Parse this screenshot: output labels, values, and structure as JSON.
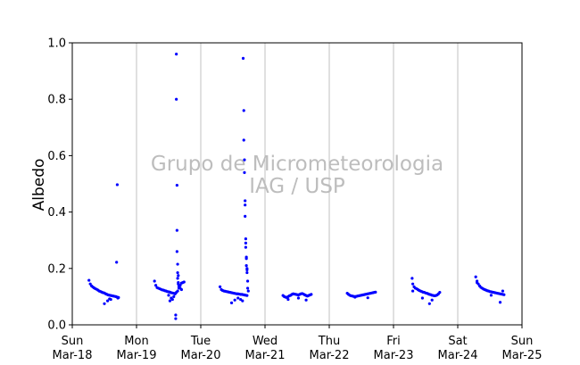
{
  "chart_data": {
    "type": "scatter",
    "ylabel": "Albedo",
    "ylim": [
      0,
      1
    ],
    "yticks": [
      "0.0",
      "0.2",
      "0.4",
      "0.6",
      "0.8",
      "1.0"
    ],
    "xlim": [
      0,
      7
    ],
    "xticks": [
      {
        "day": "Sun",
        "date": "Mar-18"
      },
      {
        "day": "Mon",
        "date": "Mar-19"
      },
      {
        "day": "Tue",
        "date": "Mar-20"
      },
      {
        "day": "Wed",
        "date": "Mar-21"
      },
      {
        "day": "Thu",
        "date": "Mar-22"
      },
      {
        "day": "Fri",
        "date": "Mar-23"
      },
      {
        "day": "Sat",
        "date": "Mar-24"
      },
      {
        "day": "Sun",
        "date": "Mar-25"
      }
    ],
    "grid": "vertical",
    "watermark": [
      "Grupo de Micrometeorologia",
      "IAG / USP"
    ],
    "marker_color": "#0000ff",
    "gridline_color": "#c0c0c0",
    "series": [
      {
        "x": [
          0.26,
          0.28,
          0.3,
          0.32,
          0.34,
          0.36,
          0.38,
          0.4,
          0.42,
          0.44,
          0.46,
          0.48,
          0.5,
          0.52,
          0.54,
          0.56,
          0.58,
          0.6,
          0.62,
          0.64,
          0.66,
          0.68,
          0.7,
          0.72,
          0.5,
          0.55,
          0.58,
          0.6,
          0.69,
          0.7,
          0.71,
          1.28,
          1.3,
          1.32,
          1.34,
          1.36,
          1.38,
          1.4,
          1.42,
          1.44,
          1.46,
          1.48,
          1.5,
          1.52,
          1.54,
          1.56,
          1.58,
          1.6,
          1.62,
          1.64,
          1.66,
          1.68,
          1.7,
          1.72,
          1.74,
          1.5,
          1.52,
          1.54,
          1.56,
          1.58,
          1.6,
          1.61,
          1.61,
          1.62,
          1.62,
          1.63,
          1.63,
          1.63,
          1.64,
          1.64,
          1.64,
          1.65,
          1.65,
          1.65,
          1.66,
          1.66,
          1.68,
          1.7,
          2.3,
          2.32,
          2.34,
          2.36,
          2.38,
          2.4,
          2.42,
          2.44,
          2.46,
          2.48,
          2.5,
          2.52,
          2.54,
          2.56,
          2.58,
          2.6,
          2.62,
          2.64,
          2.66,
          2.68,
          2.7,
          2.72,
          2.48,
          2.53,
          2.58,
          2.62,
          2.65,
          2.66,
          2.67,
          2.67,
          2.68,
          2.68,
          2.69,
          2.69,
          2.69,
          2.7,
          2.7,
          2.7,
          2.71,
          2.71,
          2.71,
          2.72,
          2.72,
          2.72,
          2.73,
          2.73,
          2.74,
          3.28,
          3.3,
          3.32,
          3.34,
          3.36,
          3.38,
          3.4,
          3.42,
          3.44,
          3.46,
          3.48,
          3.5,
          3.52,
          3.54,
          3.56,
          3.58,
          3.6,
          3.62,
          3.64,
          3.66,
          3.68,
          3.7,
          3.72,
          3.36,
          3.52,
          3.64,
          4.28,
          4.3,
          4.32,
          4.34,
          4.36,
          4.38,
          4.4,
          4.42,
          4.44,
          4.46,
          4.48,
          4.5,
          4.52,
          4.54,
          4.56,
          4.58,
          4.6,
          4.62,
          4.64,
          4.66,
          4.68,
          4.7,
          4.72,
          4.4,
          4.6,
          5.29,
          5.3,
          5.32,
          5.34,
          5.36,
          5.38,
          5.4,
          5.42,
          5.44,
          5.46,
          5.48,
          5.5,
          5.52,
          5.54,
          5.56,
          5.58,
          5.6,
          5.62,
          5.64,
          5.66,
          5.68,
          5.7,
          5.72,
          5.3,
          5.45,
          5.56,
          5.6,
          6.28,
          6.3,
          6.32,
          6.34,
          6.36,
          6.38,
          6.4,
          6.42,
          6.44,
          6.46,
          6.48,
          6.5,
          6.52,
          6.54,
          6.56,
          6.58,
          6.6,
          6.62,
          6.64,
          6.66,
          6.68,
          6.7,
          6.72,
          6.3,
          6.52,
          6.66,
          6.7
        ],
        "y": [
          0.158,
          0.145,
          0.138,
          0.134,
          0.131,
          0.128,
          0.126,
          0.123,
          0.12,
          0.118,
          0.116,
          0.114,
          0.113,
          0.11,
          0.108,
          0.106,
          0.105,
          0.104,
          0.103,
          0.102,
          0.101,
          0.1,
          0.098,
          0.097,
          0.075,
          0.085,
          0.092,
          0.09,
          0.222,
          0.497,
          0.095,
          0.155,
          0.14,
          0.132,
          0.13,
          0.128,
          0.126,
          0.124,
          0.123,
          0.121,
          0.12,
          0.118,
          0.117,
          0.116,
          0.114,
          0.113,
          0.112,
          0.11,
          0.115,
          0.12,
          0.13,
          0.14,
          0.148,
          0.15,
          0.152,
          0.105,
          0.085,
          0.095,
          0.09,
          0.1,
          0.11,
          0.022,
          0.035,
          0.96,
          0.8,
          0.495,
          0.335,
          0.26,
          0.215,
          0.185,
          0.165,
          0.175,
          0.15,
          0.145,
          0.14,
          0.135,
          0.13,
          0.125,
          0.135,
          0.125,
          0.122,
          0.12,
          0.119,
          0.118,
          0.117,
          0.116,
          0.115,
          0.114,
          0.113,
          0.112,
          0.111,
          0.11,
          0.11,
          0.109,
          0.108,
          0.108,
          0.107,
          0.106,
          0.105,
          0.104,
          0.078,
          0.088,
          0.095,
          0.09,
          0.085,
          0.945,
          0.76,
          0.655,
          0.585,
          0.54,
          0.44,
          0.425,
          0.385,
          0.305,
          0.29,
          0.275,
          0.24,
          0.235,
          0.21,
          0.2,
          0.195,
          0.185,
          0.155,
          0.13,
          0.12,
          0.104,
          0.1,
          0.098,
          0.097,
          0.1,
          0.103,
          0.105,
          0.108,
          0.11,
          0.109,
          0.108,
          0.107,
          0.106,
          0.108,
          0.11,
          0.111,
          0.109,
          0.106,
          0.104,
          0.102,
          0.104,
          0.106,
          0.108,
          0.09,
          0.095,
          0.088,
          0.112,
          0.108,
          0.105,
          0.103,
          0.102,
          0.101,
          0.1,
          0.101,
          0.102,
          0.103,
          0.104,
          0.105,
          0.106,
          0.107,
          0.108,
          0.109,
          0.11,
          0.111,
          0.112,
          0.113,
          0.114,
          0.115,
          0.116,
          0.098,
          0.096,
          0.165,
          0.145,
          0.135,
          0.13,
          0.128,
          0.125,
          0.122,
          0.12,
          0.118,
          0.116,
          0.115,
          0.113,
          0.112,
          0.11,
          0.108,
          0.107,
          0.105,
          0.104,
          0.103,
          0.104,
          0.106,
          0.11,
          0.115,
          0.12,
          0.095,
          0.075,
          0.088,
          0.17,
          0.155,
          0.145,
          0.138,
          0.133,
          0.13,
          0.127,
          0.125,
          0.123,
          0.121,
          0.12,
          0.118,
          0.117,
          0.116,
          0.115,
          0.114,
          0.113,
          0.112,
          0.111,
          0.11,
          0.109,
          0.108,
          0.107,
          0.15,
          0.105,
          0.08,
          0.12
        ]
      }
    ]
  }
}
